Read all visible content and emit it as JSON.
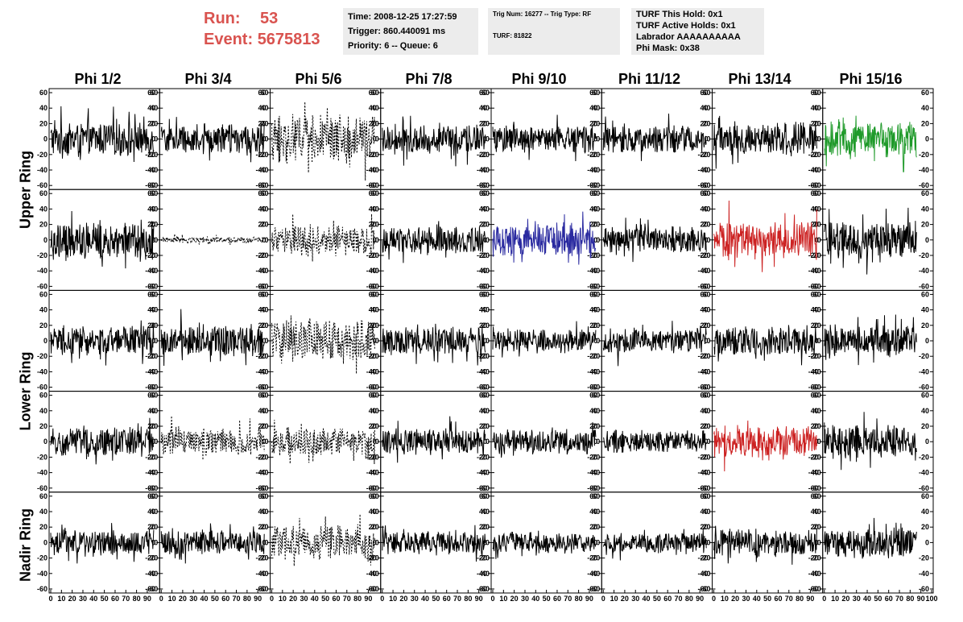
{
  "header": {
    "run_label": "Run:",
    "run_value": "53",
    "event_label": "Event:",
    "event_value": "5675813",
    "time": "Time: 2008-12-25 17:27:59",
    "trigger": "Trigger: 860.440091 ms",
    "priority": "Priority: 6 -- Queue: 6",
    "trig_num": "Trig Num: 16277 -- Trig Type: RF",
    "turf": "TURF: 81822",
    "turf_this_hold": "TURF This Hold: 0x1",
    "turf_active_holds": "TURF Active Holds: 0x1",
    "labrador": "Labrador AAAAAAAAAA",
    "phi_mask": "Phi Mask: 0x38"
  },
  "phi_titles": [
    "Phi 1/2",
    "Phi 3/4",
    "Phi 5/6",
    "Phi 7/8",
    "Phi 9/10",
    "Phi 11/12",
    "Phi 13/14",
    "Phi 15/16"
  ],
  "ring_labels": [
    "Upper Ring",
    "Lower Ring",
    "Nadir Ring"
  ],
  "chart_data": {
    "type": "line",
    "rows": 5,
    "cols": 8,
    "ylim": [
      -60,
      60
    ],
    "y_ticks": [
      -60,
      -40,
      -20,
      0,
      20,
      40,
      60
    ],
    "xlim": [
      0,
      100
    ],
    "x_ticks": [
      0,
      10,
      20,
      30,
      40,
      50,
      60,
      70,
      80,
      90,
      100
    ],
    "panels": [
      {
        "row": 0,
        "col": 0,
        "style": "solid",
        "color": "#000000",
        "amp": 17,
        "xmax": 96
      },
      {
        "row": 0,
        "col": 1,
        "style": "solid",
        "color": "#000000",
        "amp": 15,
        "xmax": 96
      },
      {
        "row": 0,
        "col": 2,
        "style": "dashed",
        "color": "#000000",
        "amp": 24,
        "xmax": 96
      },
      {
        "row": 0,
        "col": 3,
        "style": "solid",
        "color": "#000000",
        "amp": 15,
        "xmax": 96
      },
      {
        "row": 0,
        "col": 4,
        "style": "solid",
        "color": "#000000",
        "amp": 14,
        "xmax": 96
      },
      {
        "row": 0,
        "col": 5,
        "style": "solid",
        "color": "#000000",
        "amp": 14,
        "xmax": 96
      },
      {
        "row": 0,
        "col": 6,
        "style": "solid",
        "color": "#000000",
        "amp": 17,
        "xmax": 96
      },
      {
        "row": 0,
        "col": 7,
        "style": "solid",
        "color": "#1f9a2a",
        "amp": 18,
        "xmax": 86
      },
      {
        "row": 1,
        "col": 0,
        "style": "solid",
        "color": "#000000",
        "amp": 19,
        "xmax": 96
      },
      {
        "row": 1,
        "col": 1,
        "style": "dashed",
        "color": "#000000",
        "amp": 3,
        "xmax": 96
      },
      {
        "row": 1,
        "col": 2,
        "style": "dashed",
        "color": "#000000",
        "amp": 14,
        "xmax": 96
      },
      {
        "row": 1,
        "col": 3,
        "style": "solid",
        "color": "#000000",
        "amp": 14,
        "xmax": 96
      },
      {
        "row": 1,
        "col": 4,
        "style": "solid",
        "color": "#2a2aa0",
        "amp": 17,
        "xmax": 96
      },
      {
        "row": 1,
        "col": 5,
        "style": "solid",
        "color": "#000000",
        "amp": 13,
        "xmax": 96
      },
      {
        "row": 1,
        "col": 6,
        "style": "solid",
        "color": "#cc2222",
        "amp": 19,
        "xmax": 96
      },
      {
        "row": 1,
        "col": 7,
        "style": "solid",
        "color": "#000000",
        "amp": 18,
        "xmax": 86
      },
      {
        "row": 2,
        "col": 0,
        "style": "solid",
        "color": "#000000",
        "amp": 15,
        "xmax": 96
      },
      {
        "row": 2,
        "col": 1,
        "style": "solid",
        "color": "#000000",
        "amp": 16,
        "xmax": 96
      },
      {
        "row": 2,
        "col": 2,
        "style": "dashed",
        "color": "#000000",
        "amp": 22,
        "xmax": 96
      },
      {
        "row": 2,
        "col": 3,
        "style": "solid",
        "color": "#000000",
        "amp": 14,
        "xmax": 96
      },
      {
        "row": 2,
        "col": 4,
        "style": "solid",
        "color": "#000000",
        "amp": 12,
        "xmax": 96
      },
      {
        "row": 2,
        "col": 5,
        "style": "solid",
        "color": "#000000",
        "amp": 12,
        "xmax": 96
      },
      {
        "row": 2,
        "col": 6,
        "style": "solid",
        "color": "#000000",
        "amp": 15,
        "xmax": 96
      },
      {
        "row": 2,
        "col": 7,
        "style": "solid",
        "color": "#000000",
        "amp": 15,
        "xmax": 86
      },
      {
        "row": 3,
        "col": 0,
        "style": "solid",
        "color": "#000000",
        "amp": 15,
        "xmax": 96
      },
      {
        "row": 3,
        "col": 1,
        "style": "dashed",
        "color": "#000000",
        "amp": 14,
        "xmax": 96
      },
      {
        "row": 3,
        "col": 2,
        "style": "dashed",
        "color": "#000000",
        "amp": 15,
        "xmax": 96
      },
      {
        "row": 3,
        "col": 3,
        "style": "solid",
        "color": "#000000",
        "amp": 13,
        "xmax": 96
      },
      {
        "row": 3,
        "col": 4,
        "style": "solid",
        "color": "#000000",
        "amp": 12,
        "xmax": 96
      },
      {
        "row": 3,
        "col": 5,
        "style": "solid",
        "color": "#000000",
        "amp": 11,
        "xmax": 96
      },
      {
        "row": 3,
        "col": 6,
        "style": "solid",
        "color": "#cc2222",
        "amp": 15,
        "xmax": 96
      },
      {
        "row": 3,
        "col": 7,
        "style": "solid",
        "color": "#000000",
        "amp": 16,
        "xmax": 86
      },
      {
        "row": 4,
        "col": 0,
        "style": "solid",
        "color": "#000000",
        "amp": 13,
        "xmax": 96
      },
      {
        "row": 4,
        "col": 1,
        "style": "solid",
        "color": "#000000",
        "amp": 13,
        "xmax": 96
      },
      {
        "row": 4,
        "col": 2,
        "style": "dashed",
        "color": "#000000",
        "amp": 17,
        "xmax": 96
      },
      {
        "row": 4,
        "col": 3,
        "style": "solid",
        "color": "#000000",
        "amp": 12,
        "xmax": 96
      },
      {
        "row": 4,
        "col": 4,
        "style": "solid",
        "color": "#000000",
        "amp": 10,
        "xmax": 96
      },
      {
        "row": 4,
        "col": 5,
        "style": "solid",
        "color": "#000000",
        "amp": 10,
        "xmax": 96
      },
      {
        "row": 4,
        "col": 6,
        "style": "solid",
        "color": "#000000",
        "amp": 14,
        "xmax": 96
      },
      {
        "row": 4,
        "col": 7,
        "style": "solid",
        "color": "#000000",
        "amp": 15,
        "xmax": 86
      }
    ]
  }
}
